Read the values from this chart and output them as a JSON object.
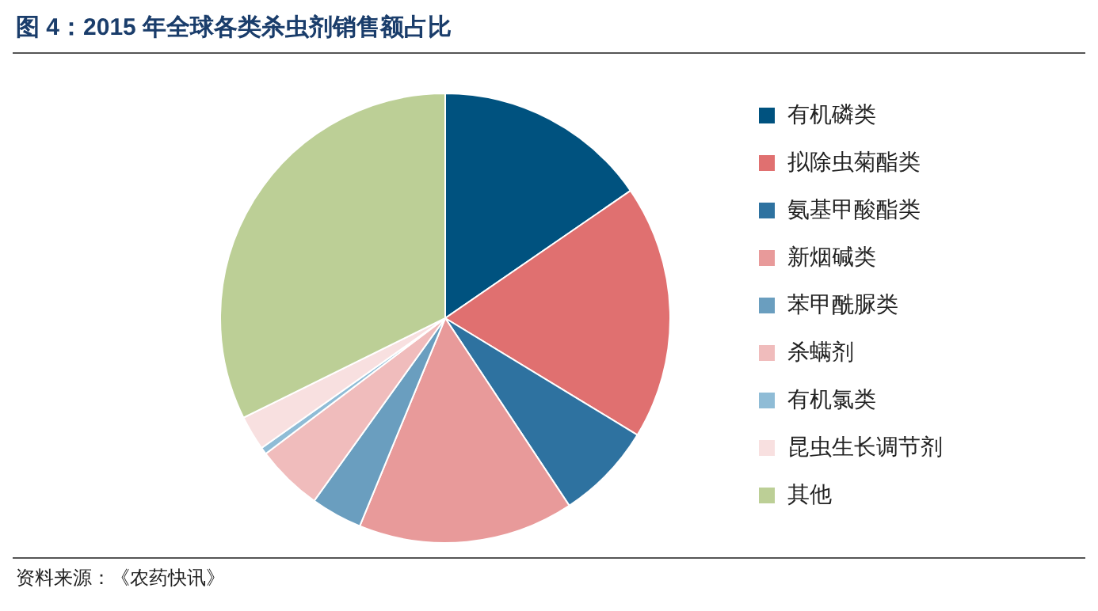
{
  "chart_data": {
    "type": "pie",
    "title": "图 4：2015 年全球各类杀虫剂销售额占比",
    "categories": [
      "有机磷类",
      "拟除虫菊酯类",
      "氨基甲酸酯类",
      "新烟碱类",
      "苯甲酰脲类",
      "杀螨剂",
      "有机氯类",
      "昆虫生长调节剂",
      "其他"
    ],
    "values": [
      15.4,
      18.3,
      7.0,
      15.5,
      3.7,
      4.8,
      0.5,
      2.5,
      32.3
    ],
    "colors": [
      "#00527f",
      "#e07070",
      "#2e72a0",
      "#e89a9a",
      "#6a9ebf",
      "#f0bcbc",
      "#8fbcd6",
      "#f8e0e0",
      "#bccf96"
    ],
    "legend": "right",
    "annotations": [
      "资料来源：《农药快讯》"
    ]
  }
}
